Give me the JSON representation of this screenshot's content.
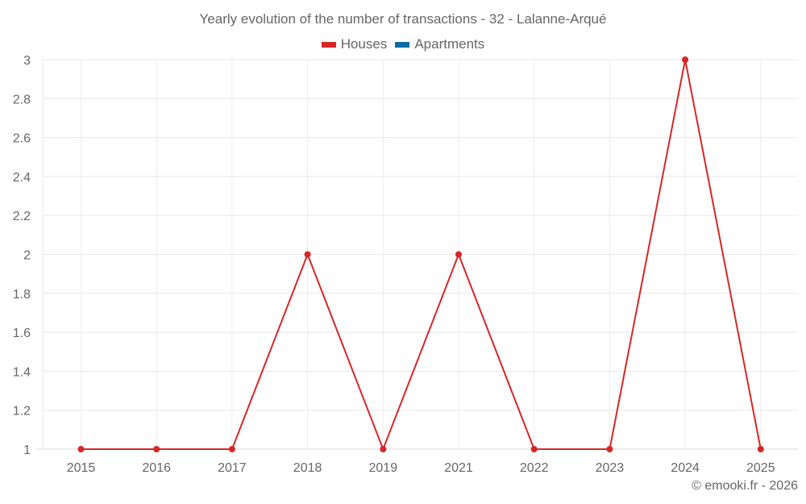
{
  "chart_data": {
    "type": "line",
    "title": "Yearly evolution of the number of transactions - 32 - Lalanne-Arqué",
    "categories": [
      "2015",
      "2016",
      "2017",
      "2018",
      "2019",
      "2021",
      "2022",
      "2023",
      "2024",
      "2025"
    ],
    "series": [
      {
        "name": "Houses",
        "color": "#d62728",
        "values": [
          1,
          1,
          1,
          2,
          1,
          2,
          1,
          1,
          3,
          1
        ]
      },
      {
        "name": "Apartments",
        "color": "#0a6aa1",
        "values": []
      }
    ],
    "xlabel": "",
    "ylabel": "",
    "ylim": [
      1,
      3
    ],
    "yticks": [
      "1",
      "1.2",
      "1.4",
      "1.6",
      "1.8",
      "2",
      "2.2",
      "2.4",
      "2.6",
      "2.8",
      "3"
    ],
    "grid": true,
    "legend_position": "top"
  },
  "header": {
    "title": "Yearly evolution of the number of transactions - 32 - Lalanne-Arqué"
  },
  "legend": {
    "items": [
      {
        "label": "Houses",
        "color": "#d62728"
      },
      {
        "label": "Apartments",
        "color": "#0a6aa1"
      }
    ]
  },
  "footer": {
    "credit": "© emooki.fr - 2026"
  }
}
